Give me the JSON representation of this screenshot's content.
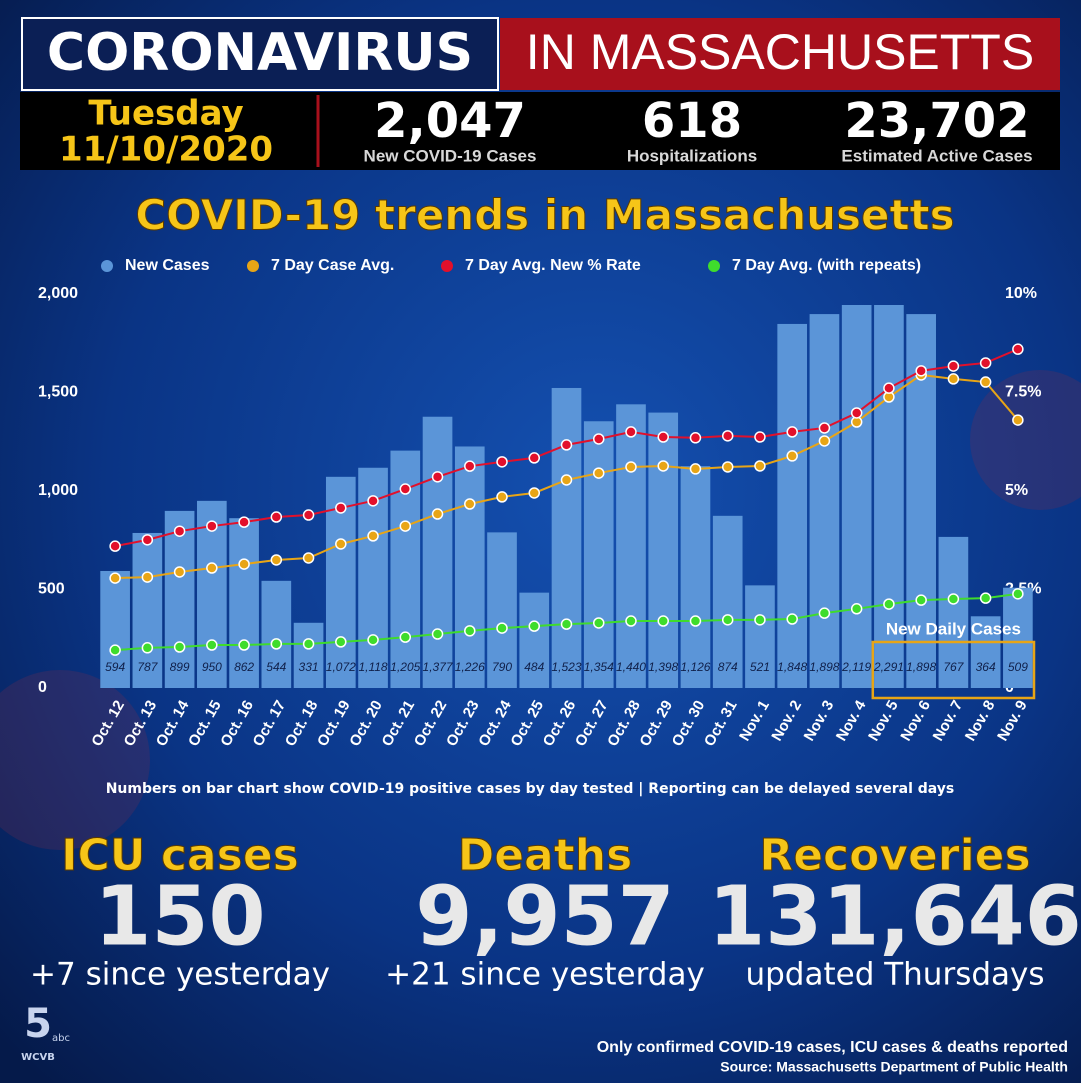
{
  "header": {
    "title_left": "CORONAVIRUS",
    "title_right": "IN MASSACHUSETTS",
    "day": "Tuesday",
    "date": "11/10/2020",
    "figures": [
      {
        "value": "2,047",
        "label": "New COVID-19 Cases"
      },
      {
        "value": "618",
        "label": "Hospitalizations"
      },
      {
        "value": "23,702",
        "label": "Estimated Active Cases"
      }
    ]
  },
  "chart_data": {
    "type": "bar",
    "title": "COVID-19 trends in Massachusetts",
    "categories": [
      "Oct. 12",
      "Oct. 13",
      "Oct. 14",
      "Oct. 15",
      "Oct. 16",
      "Oct. 17",
      "Oct. 18",
      "Oct. 19",
      "Oct. 20",
      "Oct. 21",
      "Oct. 22",
      "Oct. 23",
      "Oct. 24",
      "Oct. 25",
      "Oct. 26",
      "Oct. 27",
      "Oct. 28",
      "Oct. 29",
      "Oct. 30",
      "Oct. 31",
      "Nov. 1",
      "Nov. 2",
      "Nov. 3",
      "Nov. 4",
      "Nov. 5",
      "Nov. 6",
      "Nov. 7",
      "Nov. 8",
      "Nov. 9"
    ],
    "series": [
      {
        "name": "New Cases",
        "type": "bar",
        "color": "#5b95d8",
        "values": [
          594,
          787,
          899,
          950,
          862,
          544,
          331,
          1072,
          1118,
          1205,
          1377,
          1226,
          790,
          484,
          1523,
          1354,
          1440,
          1398,
          1126,
          874,
          521,
          1848,
          1898,
          2119,
          2291,
          1898,
          767,
          364,
          509
        ],
        "value_labels": [
          "594",
          "787",
          "899",
          "950",
          "862",
          "544",
          "331",
          "1,072",
          "1,118",
          "1,205",
          "1,377",
          "1,226",
          "790",
          "484",
          "1,523",
          "1,354",
          "1,440",
          "1,398",
          "1,126",
          "874",
          "521",
          "1,848",
          "1,898",
          "2,119",
          "2,291",
          "1,898",
          "767",
          "364",
          "509"
        ]
      },
      {
        "name": "7 Day Case Avg.",
        "type": "line",
        "color": "#e8a516",
        "values": [
          558,
          563,
          589,
          609,
          629,
          650,
          660,
          731,
          772,
          822,
          883,
          934,
          970,
          990,
          1056,
          1091,
          1122,
          1127,
          1112,
          1122,
          1127,
          1178,
          1254,
          1350,
          1477,
          1589,
          1569,
          1553,
          1360
        ]
      },
      {
        "name": "7 Day Avg. New % Rate",
        "type": "line",
        "color": "#e2102b",
        "axis": "y2",
        "values": [
          3.6,
          3.76,
          3.98,
          4.11,
          4.21,
          4.34,
          4.39,
          4.57,
          4.75,
          5.05,
          5.36,
          5.63,
          5.74,
          5.84,
          6.17,
          6.32,
          6.5,
          6.37,
          6.35,
          6.4,
          6.37,
          6.5,
          6.6,
          6.98,
          7.61,
          8.05,
          8.17,
          8.25,
          8.6
        ]
      },
      {
        "name": "7 Day Avg. (with repeats)",
        "type": "line",
        "color": "#3fdc2c",
        "axis": "y2",
        "values": [
          0.96,
          1.02,
          1.04,
          1.09,
          1.09,
          1.12,
          1.12,
          1.17,
          1.22,
          1.29,
          1.37,
          1.45,
          1.52,
          1.57,
          1.62,
          1.65,
          1.7,
          1.7,
          1.7,
          1.73,
          1.73,
          1.75,
          1.9,
          2.01,
          2.13,
          2.23,
          2.26,
          2.28,
          2.39
        ]
      }
    ],
    "ylim": [
      0,
      2000
    ],
    "yticks": [
      0,
      500,
      {
        "value": 1000,
        "label": "1,000"
      },
      {
        "value": 1500,
        "label": "1,500"
      },
      {
        "value": 2000,
        "label": "2,000"
      }
    ],
    "y2lim": [
      0,
      10
    ],
    "y2ticks": [
      0,
      {
        "value": 2.5,
        "label": "2.5%"
      },
      {
        "value": 5,
        "label": "5%"
      },
      {
        "value": 7.5,
        "label": "7.5%"
      },
      {
        "value": 10,
        "label": "10%"
      }
    ],
    "grid": false,
    "annotation": "New Daily Cases",
    "footnote": "Numbers on bar chart show COVID-19 positive cases by day tested  |  Reporting can be delayed several days"
  },
  "stats": [
    {
      "title": "ICU cases",
      "value": "150",
      "note": "+7 since yesterday"
    },
    {
      "title": "Deaths",
      "value": "9,957",
      "note": "+21 since yesterday"
    },
    {
      "title": "Recoveries",
      "value": "131,646",
      "note": "updated Thursdays"
    }
  ],
  "footer": {
    "note": "Only confirmed COVID-19 cases, ICU cases & deaths reported",
    "source": "Source: Massachusetts Department of Public Health"
  },
  "logo": {
    "channel": "5",
    "network": "abc",
    "station": "WCVB"
  }
}
